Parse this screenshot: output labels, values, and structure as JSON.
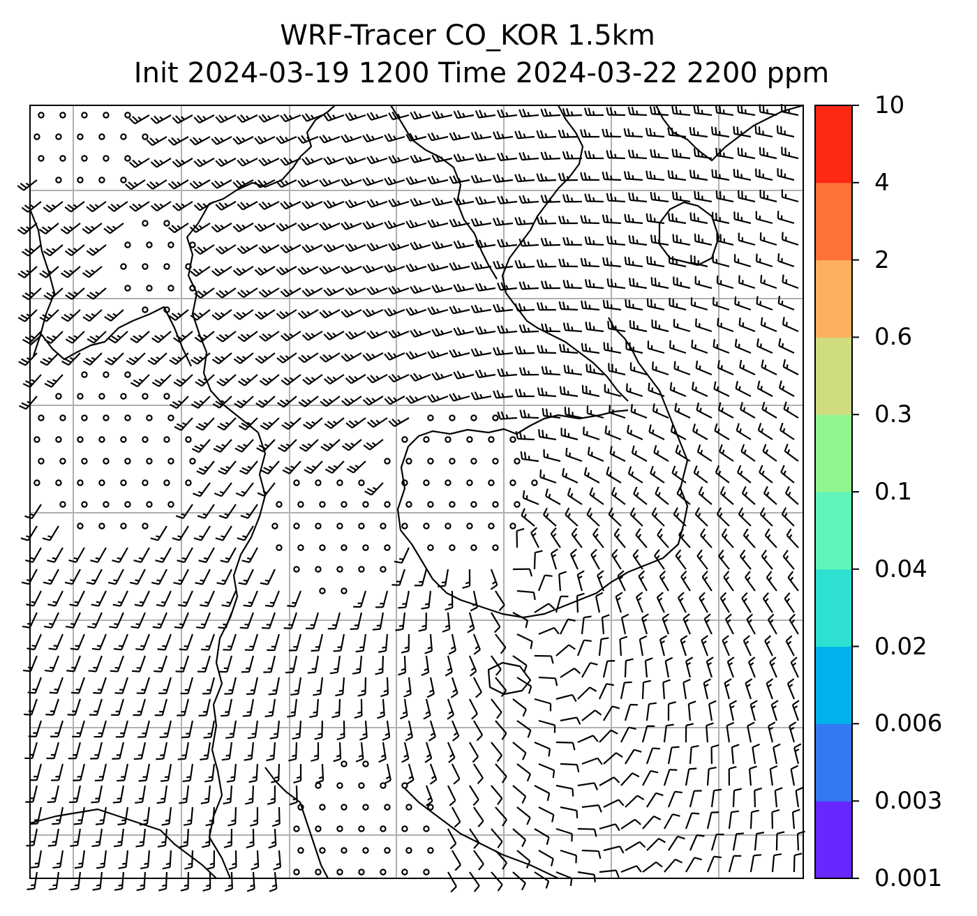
{
  "title": {
    "line1": "WRF-Tracer CO_KOR 1.5km",
    "line2": "Init 2024-03-19 1200 Time 2024-03-22 2200 ppm"
  },
  "colorbar": {
    "levels": [
      "0.001",
      "0.003",
      "0.006",
      "0.02",
      "0.04",
      "0.1",
      "0.3",
      "0.6",
      "2",
      "4",
      "10"
    ],
    "colors": [
      "#6628FF",
      "#3479F2",
      "#00B2EB",
      "#2DE0D1",
      "#5FF5B9",
      "#8FF58F",
      "#CFDD80",
      "#FCB060",
      "#FE7238",
      "#FE2815"
    ]
  },
  "map": {
    "fill": "#ffffff",
    "grid_color": "#b0b0b0",
    "coast_color": "#000000",
    "barb_color": "#000000"
  }
}
